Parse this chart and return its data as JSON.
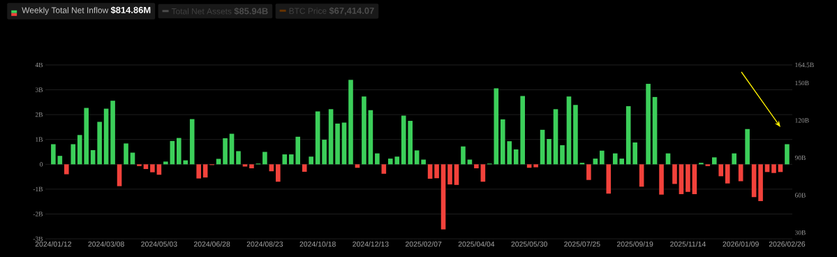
{
  "chart_data": {
    "type": "bar",
    "categories": [
      "2024/01/12",
      null,
      null,
      null,
      null,
      null,
      null,
      null,
      "2024/03/08",
      null,
      null,
      null,
      null,
      null,
      null,
      null,
      "2024/05/03",
      null,
      null,
      null,
      null,
      null,
      null,
      null,
      "2024/06/28",
      null,
      null,
      null,
      null,
      null,
      null,
      null,
      "2024/08/23",
      null,
      null,
      null,
      null,
      null,
      null,
      null,
      "2024/10/18",
      null,
      null,
      null,
      null,
      null,
      null,
      null,
      "2024/12/13",
      null,
      null,
      null,
      null,
      null,
      null,
      null,
      "2025/02/07",
      null,
      null,
      null,
      null,
      null,
      null,
      null,
      "2025/04/04",
      null,
      null,
      null,
      null,
      null,
      null,
      null,
      "2025/05/30",
      null,
      null,
      null,
      null,
      null,
      null,
      null,
      "2025/07/25",
      null,
      null,
      null,
      null,
      null,
      null,
      null,
      "2025/09/19",
      null,
      null,
      null,
      null,
      null,
      null,
      null,
      "2025/11/14",
      null,
      null,
      null,
      null,
      null,
      null,
      null,
      "2026/01/09",
      null,
      null,
      null,
      null,
      null,
      null,
      "2026/02/26"
    ],
    "series": [
      {
        "name": "Weekly Total Net Inflow",
        "values": [
          0.81,
          0.34,
          -0.4,
          0.81,
          1.18,
          2.27,
          0.57,
          1.71,
          2.24,
          2.56,
          -0.88,
          0.84,
          0.47,
          -0.07,
          -0.19,
          -0.32,
          -0.42,
          0.11,
          0.94,
          1.06,
          0.16,
          1.82,
          -0.57,
          -0.53,
          -0.03,
          0.22,
          1.05,
          1.23,
          0.53,
          -0.09,
          -0.16,
          0.03,
          0.5,
          -0.28,
          -0.7,
          0.4,
          0.4,
          1.11,
          -0.3,
          0.31,
          2.13,
          0.99,
          2.22,
          1.64,
          1.68,
          3.4,
          -0.14,
          2.73,
          2.18,
          0.44,
          -0.38,
          0.23,
          0.31,
          1.96,
          1.75,
          0.56,
          0.19,
          -0.58,
          -0.56,
          -2.62,
          -0.81,
          -0.83,
          0.72,
          0.19,
          -0.16,
          -0.7,
          0.03,
          3.06,
          1.81,
          0.93,
          0.6,
          2.75,
          -0.14,
          -0.12,
          1.39,
          1.02,
          2.22,
          0.77,
          2.73,
          2.39,
          0.06,
          -0.63,
          0.23,
          0.55,
          -1.18,
          0.44,
          0.23,
          2.34,
          0.88,
          -0.9,
          3.24,
          2.71,
          -1.22,
          0.44,
          -0.79,
          -1.2,
          -1.11,
          -1.2,
          0.06,
          -0.07,
          0.28,
          -0.48,
          -0.77,
          0.44,
          -0.68,
          1.42,
          -1.32,
          -1.48,
          -0.31,
          -0.35,
          -0.31,
          0.81
        ],
        "colors": [
          "#3ccf5a",
          "#3ccf5a",
          "#f2423b",
          "#3ccf5a",
          "#3ccf5a",
          "#3ccf5a",
          "#3ccf5a",
          "#3ccf5a",
          "#3ccf5a",
          "#3ccf5a",
          "#f2423b",
          "#3ccf5a",
          "#3ccf5a",
          "#f2423b",
          "#f2423b",
          "#f2423b",
          "#f2423b",
          "#3ccf5a",
          "#3ccf5a",
          "#3ccf5a",
          "#3ccf5a",
          "#3ccf5a",
          "#f2423b",
          "#f2423b",
          "#f2423b",
          "#3ccf5a",
          "#3ccf5a",
          "#3ccf5a",
          "#3ccf5a",
          "#f2423b",
          "#f2423b",
          "#3ccf5a",
          "#3ccf5a",
          "#f2423b",
          "#f2423b",
          "#3ccf5a",
          "#3ccf5a",
          "#3ccf5a",
          "#f2423b",
          "#3ccf5a",
          "#3ccf5a",
          "#3ccf5a",
          "#3ccf5a",
          "#3ccf5a",
          "#3ccf5a",
          "#3ccf5a",
          "#f2423b",
          "#3ccf5a",
          "#3ccf5a",
          "#3ccf5a",
          "#f2423b",
          "#3ccf5a",
          "#3ccf5a",
          "#3ccf5a",
          "#3ccf5a",
          "#3ccf5a",
          "#3ccf5a",
          "#f2423b",
          "#f2423b",
          "#f2423b",
          "#f2423b",
          "#f2423b",
          "#3ccf5a",
          "#3ccf5a",
          "#f2423b",
          "#f2423b",
          "#3ccf5a",
          "#3ccf5a",
          "#3ccf5a",
          "#3ccf5a",
          "#3ccf5a",
          "#3ccf5a",
          "#f2423b",
          "#f2423b",
          "#3ccf5a",
          "#3ccf5a",
          "#3ccf5a",
          "#3ccf5a",
          "#3ccf5a",
          "#3ccf5a",
          "#3ccf5a",
          "#f2423b",
          "#3ccf5a",
          "#3ccf5a",
          "#f2423b",
          "#3ccf5a",
          "#3ccf5a",
          "#3ccf5a",
          "#3ccf5a",
          "#f2423b",
          "#3ccf5a",
          "#3ccf5a",
          "#f2423b",
          "#3ccf5a",
          "#f2423b",
          "#f2423b",
          "#f2423b",
          "#f2423b",
          "#3ccf5a",
          "#f2423b",
          "#3ccf5a",
          "#f2423b",
          "#f2423b",
          "#3ccf5a",
          "#f2423b",
          "#3ccf5a",
          "#f2423b",
          "#f2423b",
          "#f2423b",
          "#f2423b",
          "#f2423b",
          "#3ccf5a"
        ]
      }
    ],
    "ylim": [
      -3,
      4
    ],
    "yticks": [
      {
        "value": -3,
        "label": "-3B"
      },
      {
        "value": -2,
        "label": "-2B"
      },
      {
        "value": -1,
        "label": "-1B"
      },
      0,
      {
        "value": 1,
        "label": "1B"
      },
      {
        "value": 2,
        "label": "2B"
      },
      {
        "value": 3,
        "label": "3B"
      },
      {
        "value": 4,
        "label": "4B"
      }
    ],
    "y2lim": [
      25,
      164.5
    ],
    "y2ticks": [
      {
        "value": 30,
        "label": "30B"
      },
      {
        "value": 60,
        "label": "60B"
      },
      {
        "value": 90,
        "label": "90B"
      },
      {
        "value": 120,
        "label": "120B"
      },
      {
        "value": 150,
        "label": "150B"
      },
      {
        "value": 164.5,
        "label": "164.5B"
      }
    ],
    "grid": "y",
    "legend": "top left",
    "annotations": [
      "$814.86M",
      "Total Net Assets",
      "$85.94B",
      "BTC Price",
      "$67,414.07"
    ]
  }
}
